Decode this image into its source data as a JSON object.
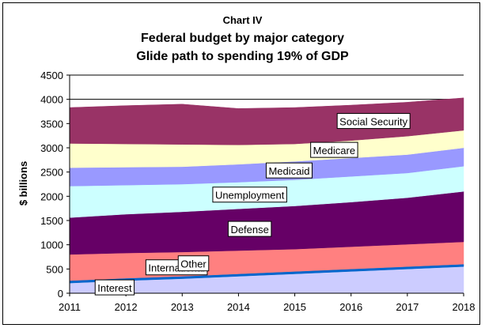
{
  "chart_data": {
    "type": "area",
    "stacked": true,
    "title_lines": [
      "Chart IV",
      "Federal budget by major category",
      "Glide path to spending 19% of GDP"
    ],
    "xlabel": "",
    "ylabel": "$ billions",
    "x": [
      2011,
      2012,
      2013,
      2014,
      2015,
      2016,
      2017,
      2018
    ],
    "ylim": [
      0,
      4500
    ],
    "yticks": [
      0,
      500,
      1000,
      1500,
      2000,
      2500,
      3000,
      3500,
      4000,
      4500
    ],
    "grid": "horizontal",
    "legend": "none (labels inside areas)",
    "series": [
      {
        "name": "Interest",
        "values": [
          210,
          260,
          300,
          350,
          400,
          450,
          500,
          550
        ],
        "color": "#ccccff"
      },
      {
        "name": "International",
        "values": [
          50,
          50,
          50,
          50,
          50,
          50,
          50,
          50
        ],
        "color": "#0066cc"
      },
      {
        "name": "Other",
        "values": [
          540,
          520,
          500,
          480,
          460,
          460,
          460,
          460
        ],
        "color": "#ff8080"
      },
      {
        "name": "Defense",
        "values": [
          760,
          800,
          830,
          860,
          890,
          920,
          960,
          1040
        ],
        "color": "#660066"
      },
      {
        "name": "Unemployment",
        "values": [
          650,
          600,
          570,
          550,
          540,
          530,
          510,
          520
        ],
        "color": "#ccffff"
      },
      {
        "name": "Medicaid",
        "values": [
          380,
          370,
          360,
          370,
          380,
          380,
          380,
          380
        ],
        "color": "#9999ff"
      },
      {
        "name": "Medicare",
        "values": [
          500,
          480,
          460,
          400,
          360,
          360,
          380,
          360
        ],
        "color": "#ffffcc"
      },
      {
        "name": "Social Security",
        "values": [
          740,
          790,
          830,
          750,
          750,
          730,
          700,
          670
        ],
        "color": "#993366"
      }
    ]
  }
}
